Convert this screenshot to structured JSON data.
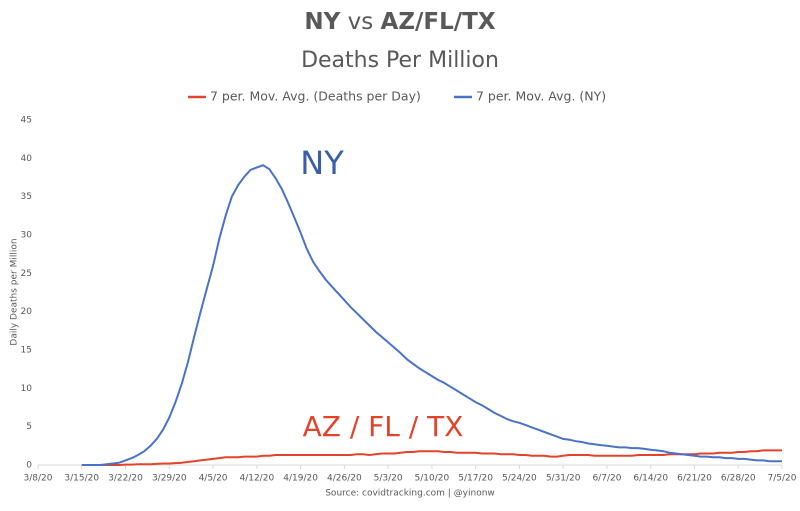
{
  "chart_data": {
    "type": "line",
    "title": [
      "NY",
      "vs",
      "AZ/FL/TX"
    ],
    "subtitle": "Deaths Per Million",
    "y_label": "Daily Deaths per Million",
    "source": "Source: covidtracking.com | @yinonw",
    "annotations": [
      {
        "text": "NY",
        "color": "#3a5ea8"
      },
      {
        "text": "AZ / FL / TX",
        "color": "#e2432a"
      }
    ],
    "legend": "top",
    "categories": [
      "3/8/20",
      null,
      null,
      null,
      null,
      null,
      null,
      "3/15/20",
      null,
      null,
      null,
      null,
      null,
      null,
      "3/22/20",
      null,
      null,
      null,
      null,
      null,
      null,
      "3/29/20",
      null,
      null,
      null,
      null,
      null,
      null,
      "4/5/20",
      null,
      null,
      null,
      null,
      null,
      null,
      "4/12/20",
      null,
      null,
      null,
      null,
      null,
      null,
      "4/19/20",
      null,
      null,
      null,
      null,
      null,
      null,
      "4/26/20",
      null,
      null,
      null,
      null,
      null,
      null,
      "5/3/20",
      null,
      null,
      null,
      null,
      null,
      null,
      "5/10/20",
      null,
      null,
      null,
      null,
      null,
      null,
      "5/17/20",
      null,
      null,
      null,
      null,
      null,
      null,
      "5/24/20",
      null,
      null,
      null,
      null,
      null,
      null,
      "5/31/20",
      null,
      null,
      null,
      null,
      null,
      null,
      "6/7/20",
      null,
      null,
      null,
      null,
      null,
      null,
      "6/14/20",
      null,
      null,
      null,
      null,
      null,
      null,
      "6/21/20",
      null,
      null,
      null,
      null,
      null,
      null,
      "6/28/20",
      null,
      null,
      null,
      null,
      null,
      null,
      "7/5/20"
    ],
    "series": [
      {
        "name": "7 per. Mov. Avg. (Deaths per Day)",
        "color": "#e2432a",
        "values": [
          null,
          null,
          null,
          null,
          null,
          null,
          null,
          0,
          0,
          0,
          0,
          0,
          0,
          0,
          0.05,
          0.05,
          0.1,
          0.1,
          0.1,
          0.15,
          0.2,
          0.2,
          0.25,
          0.3,
          0.4,
          0.5,
          0.6,
          0.7,
          0.8,
          0.9,
          1,
          1,
          1,
          1.1,
          1.1,
          1.1,
          1.2,
          1.2,
          1.3,
          1.3,
          1.3,
          1.3,
          1.3,
          1.3,
          1.3,
          1.3,
          1.3,
          1.3,
          1.3,
          1.3,
          1.3,
          1.4,
          1.4,
          1.3,
          1.4,
          1.5,
          1.5,
          1.5,
          1.6,
          1.7,
          1.7,
          1.8,
          1.8,
          1.8,
          1.8,
          1.7,
          1.7,
          1.6,
          1.6,
          1.6,
          1.6,
          1.5,
          1.5,
          1.5,
          1.4,
          1.4,
          1.4,
          1.3,
          1.3,
          1.2,
          1.2,
          1.2,
          1.1,
          1.1,
          1.2,
          1.3,
          1.3,
          1.3,
          1.3,
          1.2,
          1.2,
          1.2,
          1.2,
          1.2,
          1.2,
          1.2,
          1.3,
          1.3,
          1.3,
          1.3,
          1.3,
          1.4,
          1.4,
          1.4,
          1.4,
          1.4,
          1.5,
          1.5,
          1.5,
          1.6,
          1.6,
          1.6,
          1.7,
          1.7,
          1.8,
          1.8,
          1.9,
          1.9,
          1.9,
          1.9
        ]
      },
      {
        "name": "7 per. Mov. Avg. (NY)",
        "color": "#4a72c6",
        "values": [
          null,
          null,
          null,
          null,
          null,
          null,
          null,
          0,
          0,
          0,
          0,
          0.1,
          0.2,
          0.3,
          0.6,
          0.9,
          1.3,
          1.8,
          2.5,
          3.4,
          4.6,
          6.2,
          8.2,
          10.6,
          13.5,
          16.8,
          20,
          23,
          26,
          29.5,
          32.5,
          35,
          36.5,
          37.6,
          38.5,
          38.8,
          39.1,
          38.6,
          37.4,
          36,
          34.2,
          32.3,
          30.3,
          28.2,
          26.5,
          25.3,
          24.2,
          23.3,
          22.4,
          21.5,
          20.6,
          19.8,
          19,
          18.2,
          17.4,
          16.7,
          16,
          15.3,
          14.6,
          13.8,
          13.2,
          12.6,
          12.1,
          11.6,
          11.1,
          10.7,
          10.2,
          9.7,
          9.2,
          8.7,
          8.2,
          7.8,
          7.3,
          6.8,
          6.4,
          6,
          5.7,
          5.5,
          5.2,
          4.9,
          4.6,
          4.3,
          4,
          3.7,
          3.4,
          3.3,
          3.1,
          3,
          2.8,
          2.7,
          2.6,
          2.5,
          2.4,
          2.3,
          2.3,
          2.2,
          2.2,
          2.1,
          2,
          1.9,
          1.8,
          1.6,
          1.5,
          1.4,
          1.3,
          1.2,
          1.1,
          1.1,
          1,
          1,
          0.9,
          0.9,
          0.8,
          0.8,
          0.7,
          0.6,
          0.6,
          0.5,
          0.5,
          0.5
        ]
      }
    ],
    "ylim": [
      0,
      45
    ],
    "yticks": [
      0,
      5,
      10,
      15,
      20,
      25,
      30,
      35,
      40,
      45
    ],
    "grid": false
  }
}
